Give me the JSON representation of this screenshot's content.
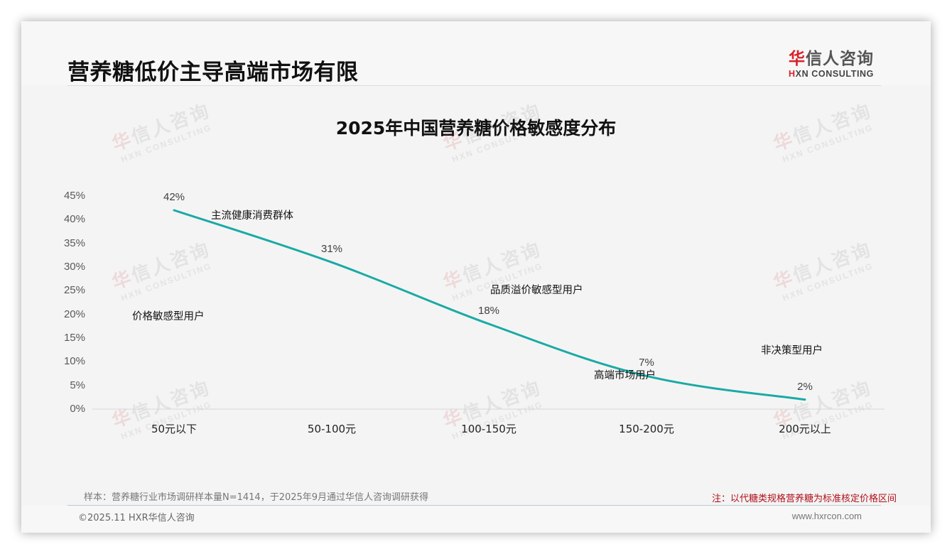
{
  "header": {
    "title": "营养糖低价主导高端市场有限",
    "logo": {
      "cn_red": "华",
      "cn_rest": "信人咨询",
      "en_mark": "H",
      "en_rest": "XN CONSULTING"
    }
  },
  "watermark": {
    "cn_red": "华",
    "cn_rest": "信人咨询",
    "en": "HXN CONSULTING"
  },
  "chart_data": {
    "type": "line",
    "title": "2025年中国营养糖价格敏感度分布",
    "xlabel": "",
    "ylabel": "",
    "categories": [
      "50元以下",
      "50-100元",
      "100-150元",
      "150-200元",
      "200元以上"
    ],
    "series": [
      {
        "name": "价格敏感度分布",
        "values": [
          42,
          31,
          18,
          7,
          2
        ],
        "color": "#1aaaa5"
      }
    ],
    "data_labels": [
      "42%",
      "31%",
      "18%",
      "7%",
      "2%"
    ],
    "ylim": [
      0,
      45
    ],
    "yticks": [
      "0%",
      "5%",
      "10%",
      "15%",
      "20%",
      "25%",
      "30%",
      "35%",
      "40%",
      "45%"
    ],
    "grid": false,
    "legend": "none",
    "annotations": [
      {
        "text": "价格敏感型用户",
        "near": "50元以下"
      },
      {
        "text": "主流健康消费群体",
        "near": "50-100元"
      },
      {
        "text": "品质溢价敏感型用户",
        "near": "100-150元"
      },
      {
        "text": "高端市场用户",
        "near": "150-200元"
      },
      {
        "text": "非决策型用户",
        "near": "200元以上"
      }
    ]
  },
  "footer": {
    "source": "样本：营养糖行业市场调研样本量N=1414，于2025年9月通过华信人咨询调研获得",
    "note": "注：以代糖类规格营养糖为标准核定价格区间",
    "copyright": "©2025.11 HXR华信人咨询",
    "website": "www.hxrcon.com"
  }
}
